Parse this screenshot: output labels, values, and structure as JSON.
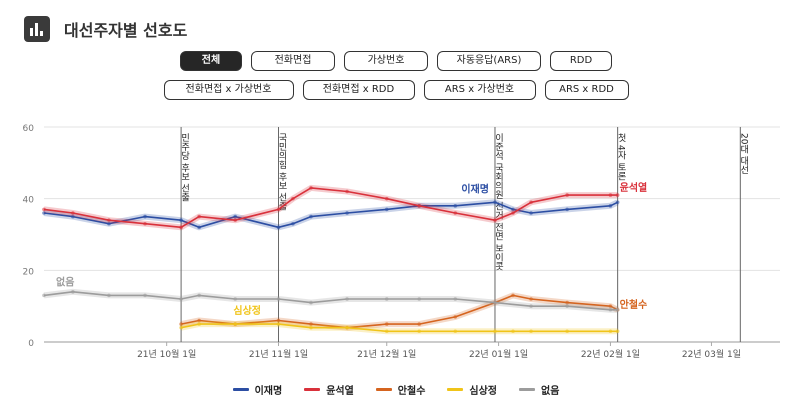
{
  "header": {
    "title": "대선주자별 선호도",
    "icon": "bar-chart-icon"
  },
  "filters": {
    "row1": [
      {
        "label": "전체",
        "active": true
      },
      {
        "label": "전화면접",
        "active": false
      },
      {
        "label": "가상번호",
        "active": false
      },
      {
        "label": "자동응답(ARS)",
        "active": false
      },
      {
        "label": "RDD",
        "active": false
      }
    ],
    "row2": [
      {
        "label": "전화면접 x 가상번호",
        "active": false
      },
      {
        "label": "전화면접 x RDD",
        "active": false
      },
      {
        "label": "ARS x 가상번호",
        "active": false
      },
      {
        "label": "ARS x RDD",
        "active": false
      }
    ]
  },
  "chart_data": {
    "type": "line",
    "x_range": [
      "2021-08-28",
      "2022-03-20"
    ],
    "ylim": [
      0,
      60
    ],
    "y_ticks": [
      0,
      20,
      40,
      60
    ],
    "x_ticks": [
      {
        "date": "2021-10-01",
        "label": "21년 10월 1일"
      },
      {
        "date": "2021-11-01",
        "label": "21년 11월 1일"
      },
      {
        "date": "2021-12-01",
        "label": "21년 12월 1일"
      },
      {
        "date": "2022-01-01",
        "label": "22년 01월 1일"
      },
      {
        "date": "2022-02-01",
        "label": "22년 02월 1일"
      },
      {
        "date": "2022-03-01",
        "label": "22년 03월 1일"
      }
    ],
    "events": [
      {
        "date": "2021-10-05",
        "label": "민주당 후보 선출"
      },
      {
        "date": "2021-11-01",
        "label": "국민의힘 후보 선출"
      },
      {
        "date": "2021-12-31",
        "label": "이준석 국회의원 선거 전면 보이콧"
      },
      {
        "date": "2022-02-03",
        "label": "첫 4자 토론"
      },
      {
        "date": "2022-03-09",
        "label": "20대 대선"
      }
    ],
    "colors": {
      "이재명": "#2c4ea3",
      "윤석열": "#d9313b",
      "안철수": "#d5641f",
      "심상정": "#f0c419",
      "없음": "#9c9c9c"
    },
    "series": [
      {
        "name": "이재명",
        "label": "이재명",
        "x": [
          "2021-08-28",
          "2021-09-05",
          "2021-09-15",
          "2021-09-25",
          "2021-10-05",
          "2021-10-10",
          "2021-10-20",
          "2021-11-01",
          "2021-11-05",
          "2021-11-10",
          "2021-11-20",
          "2021-12-01",
          "2021-12-10",
          "2021-12-20",
          "2021-12-31",
          "2022-01-05",
          "2022-01-10",
          "2022-01-20",
          "2022-02-01",
          "2022-02-03"
        ],
        "values": [
          36,
          35,
          33,
          35,
          34,
          32,
          35,
          32,
          33,
          35,
          36,
          37,
          38,
          38,
          39,
          37,
          36,
          37,
          38,
          39
        ]
      },
      {
        "name": "윤석열",
        "label": "윤석열",
        "x": [
          "2021-08-28",
          "2021-09-05",
          "2021-09-15",
          "2021-09-25",
          "2021-10-05",
          "2021-10-10",
          "2021-10-20",
          "2021-11-01",
          "2021-11-05",
          "2021-11-10",
          "2021-11-20",
          "2021-12-01",
          "2021-12-10",
          "2021-12-20",
          "2021-12-31",
          "2022-01-05",
          "2022-01-10",
          "2022-01-20",
          "2022-02-01",
          "2022-02-03"
        ],
        "values": [
          37,
          36,
          34,
          33,
          32,
          35,
          34,
          37,
          40,
          43,
          42,
          40,
          38,
          36,
          34,
          36,
          39,
          41,
          41,
          41
        ]
      },
      {
        "name": "안철수",
        "label": "안철수",
        "x": [
          "2021-10-05",
          "2021-10-10",
          "2021-10-20",
          "2021-11-01",
          "2021-11-10",
          "2021-11-20",
          "2021-12-01",
          "2021-12-10",
          "2021-12-20",
          "2021-12-31",
          "2022-01-05",
          "2022-01-10",
          "2022-01-20",
          "2022-02-01",
          "2022-02-03"
        ],
        "values": [
          5,
          6,
          5,
          6,
          5,
          4,
          5,
          5,
          7,
          11,
          13,
          12,
          11,
          10,
          9
        ]
      },
      {
        "name": "심상정",
        "label": "심상정",
        "x": [
          "2021-10-05",
          "2021-10-10",
          "2021-10-20",
          "2021-11-01",
          "2021-11-10",
          "2021-11-20",
          "2021-12-01",
          "2021-12-10",
          "2021-12-20",
          "2021-12-31",
          "2022-01-05",
          "2022-01-10",
          "2022-01-20",
          "2022-02-01",
          "2022-02-03"
        ],
        "values": [
          4,
          5,
          5,
          5,
          4,
          4,
          3,
          3,
          3,
          3,
          3,
          3,
          3,
          3,
          3
        ]
      },
      {
        "name": "없음",
        "label": "없음",
        "x": [
          "2021-08-28",
          "2021-09-05",
          "2021-09-15",
          "2021-09-25",
          "2021-10-05",
          "2021-10-10",
          "2021-10-20",
          "2021-11-01",
          "2021-11-10",
          "2021-11-20",
          "2021-12-01",
          "2021-12-10",
          "2021-12-20",
          "2021-12-31",
          "2022-01-10",
          "2022-01-20",
          "2022-02-01",
          "2022-02-03"
        ],
        "values": [
          13,
          14,
          13,
          13,
          12,
          13,
          12,
          12,
          11,
          12,
          12,
          12,
          12,
          11,
          10,
          10,
          9,
          9
        ]
      }
    ],
    "legend": [
      "이재명",
      "윤석열",
      "안철수",
      "심상정",
      "없음"
    ],
    "grid": true,
    "legend_position": "bottom"
  }
}
